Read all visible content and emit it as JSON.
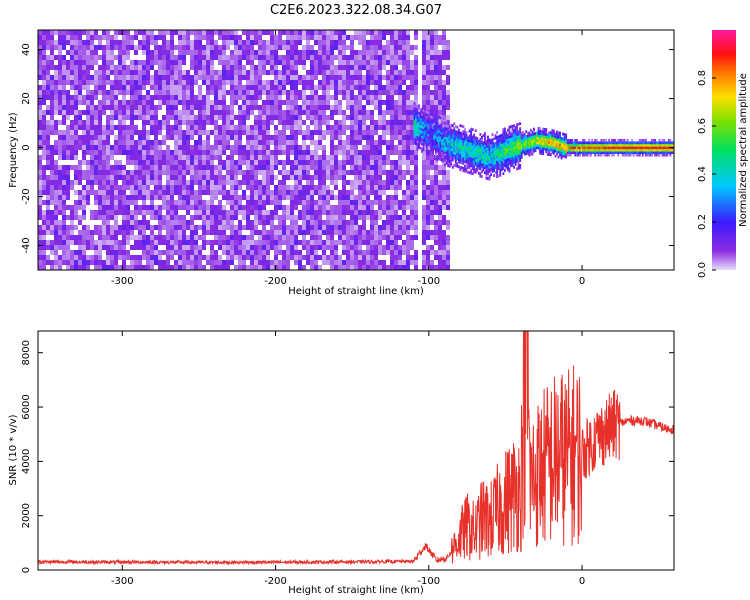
{
  "title": "C2E6.2023.322.08.34.G07",
  "colors": {
    "background": "#ffffff",
    "snr_line": "#e8302a",
    "axes": "#000000"
  },
  "chart_data": [
    {
      "type": "heatmap",
      "xlabel": "Height of straight line (km)",
      "ylabel": "Frequency (Hz)",
      "xlim": [
        -355,
        60
      ],
      "ylim": [
        -50,
        48
      ],
      "xticks": [
        -300,
        -200,
        -100,
        0
      ],
      "yticks": [
        -40,
        -20,
        0,
        20,
        40
      ],
      "colormap": "rainbow (purple-blue-cyan-green-yellow-red-magenta)",
      "colorbar": {
        "label": "Normalized spectral amplitude",
        "range": [
          0.0,
          1.0
        ],
        "ticks": [
          "0.0",
          "0.2",
          "0.4",
          "0.6",
          "0.8"
        ]
      },
      "noise_region": {
        "x_range": [
          -355,
          -88
        ],
        "freq_range": [
          -50,
          48
        ],
        "amplitude": [
          0.0,
          0.15
        ]
      },
      "signal_track": [
        {
          "x": -110,
          "freq": 9,
          "amp": 0.45
        },
        {
          "x": -100,
          "freq": 6,
          "amp": 0.25
        },
        {
          "x": -90,
          "freq": 2,
          "amp": 0.35
        },
        {
          "x": -80,
          "freq": 0,
          "amp": 0.4
        },
        {
          "x": -70,
          "freq": -2,
          "amp": 0.45
        },
        {
          "x": -60,
          "freq": -4,
          "amp": 0.4
        },
        {
          "x": -50,
          "freq": -1,
          "amp": 0.5
        },
        {
          "x": -40,
          "freq": 1,
          "amp": 0.6
        },
        {
          "x": -30,
          "freq": 3,
          "amp": 0.7
        },
        {
          "x": -20,
          "freq": 2,
          "amp": 0.75
        },
        {
          "x": -10,
          "freq": 0,
          "amp": 0.8
        },
        {
          "x": 0,
          "freq": 0,
          "amp": 0.85
        },
        {
          "x": 10,
          "freq": 0,
          "amp": 0.85
        },
        {
          "x": 20,
          "freq": 0,
          "amp": 0.9
        },
        {
          "x": 40,
          "freq": 0,
          "amp": 0.9
        },
        {
          "x": 60,
          "freq": 0,
          "amp": 0.9
        }
      ]
    },
    {
      "type": "line",
      "xlabel": "Height of straight line (km)",
      "ylabel": "SNR (10 * v/v)",
      "xlim": [
        -355,
        60
      ],
      "ylim": [
        0,
        8800
      ],
      "xticks": [
        -300,
        -200,
        -100,
        0
      ],
      "yticks": [
        0,
        2000,
        4000,
        6000,
        8000
      ],
      "series": [
        {
          "x": [
            -355,
            -300,
            -250,
            -200,
            -150,
            -110,
            -102,
            -95,
            -88,
            -80,
            -75,
            -70,
            -65,
            -60,
            -55,
            -50,
            -45,
            -40,
            -36,
            -34,
            -30,
            -25,
            -20,
            -15,
            -10,
            -5,
            0,
            5,
            10,
            15,
            20,
            25,
            30,
            35,
            40,
            45,
            50,
            55,
            60
          ],
          "y": [
            300,
            290,
            280,
            285,
            300,
            320,
            900,
            350,
            450,
            1200,
            1600,
            1400,
            1900,
            1800,
            2200,
            2500,
            2800,
            3000,
            8800,
            3200,
            3500,
            3800,
            4000,
            4200,
            4100,
            4300,
            4300,
            4600,
            4900,
            5100,
            5300,
            5400,
            5500,
            5500,
            5500,
            5400,
            5300,
            5200,
            5200
          ]
        }
      ]
    }
  ]
}
